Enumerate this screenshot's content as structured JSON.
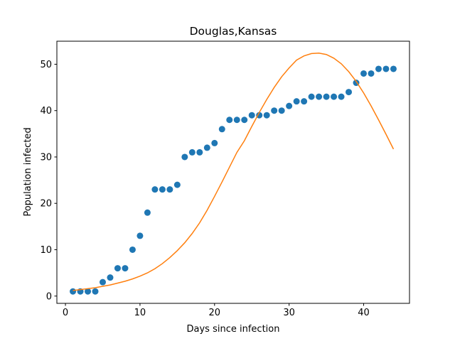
{
  "chart_data": {
    "type": "scatter",
    "title": "Douglas,Kansas",
    "x_label": "Days since infection",
    "y_label": "Population infected",
    "x": [
      1,
      2,
      3,
      4,
      5,
      6,
      7,
      8,
      9,
      10,
      11,
      12,
      13,
      14,
      15,
      16,
      17,
      18,
      19,
      20,
      21,
      22,
      23,
      24,
      25,
      26,
      27,
      28,
      29,
      30,
      31,
      32,
      33,
      34,
      35,
      36,
      37,
      38,
      39,
      40,
      41,
      42,
      43,
      44
    ],
    "series": [
      {
        "type": "scatter",
        "color": "#1f77b4",
        "values": [
          1,
          1,
          1,
          1,
          3,
          4,
          6,
          6,
          10,
          13,
          18,
          23,
          23,
          23,
          24,
          30,
          31,
          31,
          32,
          33,
          36,
          38,
          38,
          38,
          39,
          39,
          39,
          40,
          40,
          41,
          42,
          42,
          43,
          43,
          43,
          43,
          43,
          44,
          46,
          48,
          48,
          49,
          49,
          49
        ]
      },
      {
        "type": "line",
        "color": "#ff7f0e",
        "values": [
          1.2,
          1.4,
          1.6,
          1.8,
          2.1,
          2.4,
          2.8,
          3.2,
          3.7,
          4.3,
          5.0,
          5.9,
          7.0,
          8.3,
          9.8,
          11.5,
          13.5,
          15.8,
          18.5,
          21.5,
          24.6,
          27.8,
          31.0,
          33.5,
          36.6,
          39.6,
          42.4,
          45.0,
          47.3,
          49.2,
          50.9,
          51.8,
          52.3,
          52.4,
          52.1,
          51.3,
          50.1,
          48.4,
          46.3,
          43.8,
          41.0,
          38.0,
          34.9,
          31.7
        ]
      }
    ],
    "xlim": [
      -1.15,
      46.15
    ],
    "xticks": [
      0,
      10,
      20,
      30,
      40
    ],
    "ylim": [
      -1.57,
      54.97
    ],
    "yticks": [
      0,
      10,
      20,
      30,
      40,
      50
    ]
  }
}
